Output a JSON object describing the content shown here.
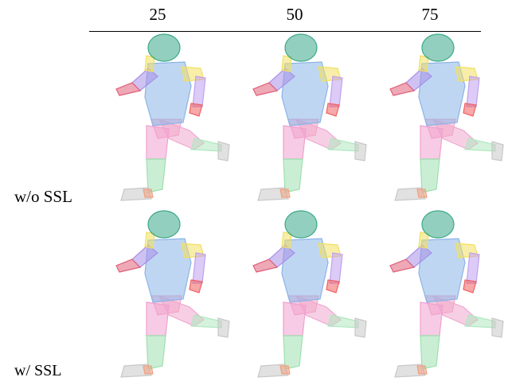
{
  "columns": [
    {
      "label": "25"
    },
    {
      "label": "50"
    },
    {
      "label": "75"
    }
  ],
  "rows": [
    {
      "label": "w/o SSL"
    },
    {
      "label": "w/ SSL"
    }
  ],
  "part_colors": {
    "head": "#3aa888",
    "torso": "#8ab4e8",
    "hips": "#f2a8c8",
    "thigh_left": "#f0a0d0",
    "shin": "#9ee0b0",
    "foot": "#c8c8c8",
    "upper_arm_left": "#a890e8",
    "forearm_left": "#e0607a",
    "shoulder_right": "#f2e060",
    "arm_right": "#c0a0f0",
    "hand_right": "#f06060",
    "thigh_right": "#f0a8d0",
    "shin_right": "#b0e8c0",
    "foot_right": "#c8c8c8",
    "toe_accent": "#f0a080"
  }
}
